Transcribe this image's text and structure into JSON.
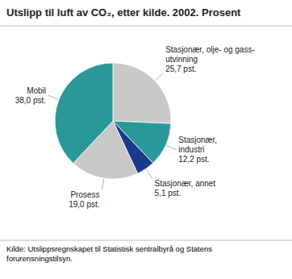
{
  "chart_data": {
    "type": "pie",
    "title": "Utslipp til luft av CO₂, etter kilde. 2002. Prosent",
    "categories": [
      "Stasjonær, olje- og gass-\nutvinning",
      "Stasjonær,\nindustri",
      "Stasjonær, annet",
      "Prosess",
      "Mobil"
    ],
    "values": [
      25.7,
      12.2,
      5.1,
      19.0,
      38.0
    ],
    "value_labels": [
      "25,7 pst.",
      "12,2 pst.",
      "5,1 pst.",
      "19,0 pst.",
      "38,0 pst."
    ],
    "colors": [
      "#c8c8c8",
      "#2a9898",
      "#1a3a8a",
      "#c8c8c8",
      "#2a9898"
    ],
    "data_labels": true,
    "annotations": [
      "Kilde: Utslippsregnskapet til Statistisk sentralbyrå og Statens\nforurensningstilsyn."
    ]
  }
}
